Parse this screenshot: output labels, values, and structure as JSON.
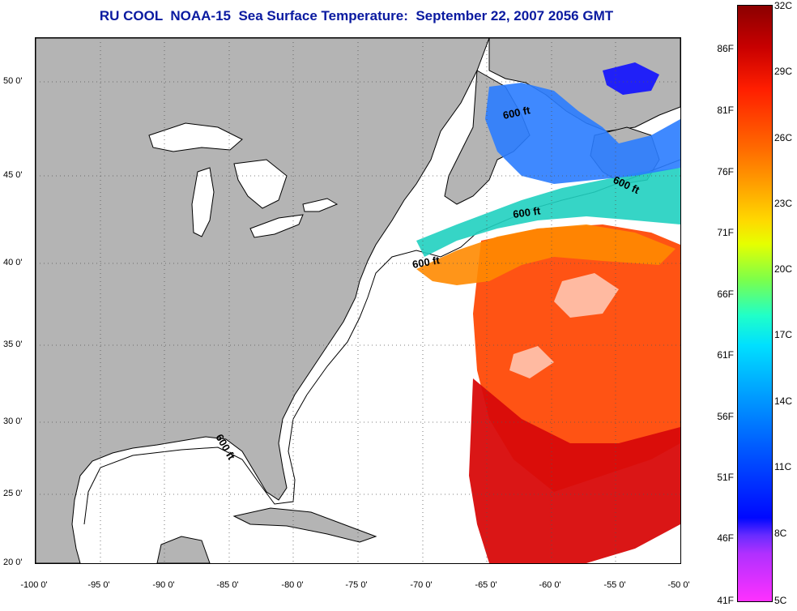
{
  "title": "RU COOL  NOAA-15  Sea Surface Temperature:  September 22, 2007 2056 GMT",
  "map": {
    "lat_labels": [
      "50 0'",
      "45 0'",
      "40 0'",
      "35 0'",
      "30 0'",
      "25 0'",
      "20 0'"
    ],
    "lon_labels": [
      "-100 0'",
      "-95 0'",
      "-90 0'",
      "-85 0'",
      "-80 0'",
      "-75 0'",
      "-70 0'",
      "-65 0'",
      "-60 0'",
      "-55 0'",
      "-50 0'"
    ],
    "lat_range": [
      20,
      52.5
    ],
    "lon_range": [
      -100,
      -50
    ],
    "contour_labels": [
      "600 ft",
      "600 ft",
      "600 ft",
      "600 ft",
      "600 ft"
    ],
    "colors": {
      "land": "#b4b4b4",
      "ocean_no_data": "#ffffff",
      "title": "#0a1aa0"
    }
  },
  "colorbar": {
    "fahrenheit_labels": [
      "86F",
      "81F",
      "76F",
      "71F",
      "66F",
      "61F",
      "56F",
      "51F",
      "46F",
      "41F"
    ],
    "celsius_labels": [
      "32C",
      "29C",
      "26C",
      "23C",
      "20C",
      "17C",
      "14C",
      "11C",
      "8C",
      "5C"
    ],
    "range_c": [
      5,
      32
    ]
  }
}
